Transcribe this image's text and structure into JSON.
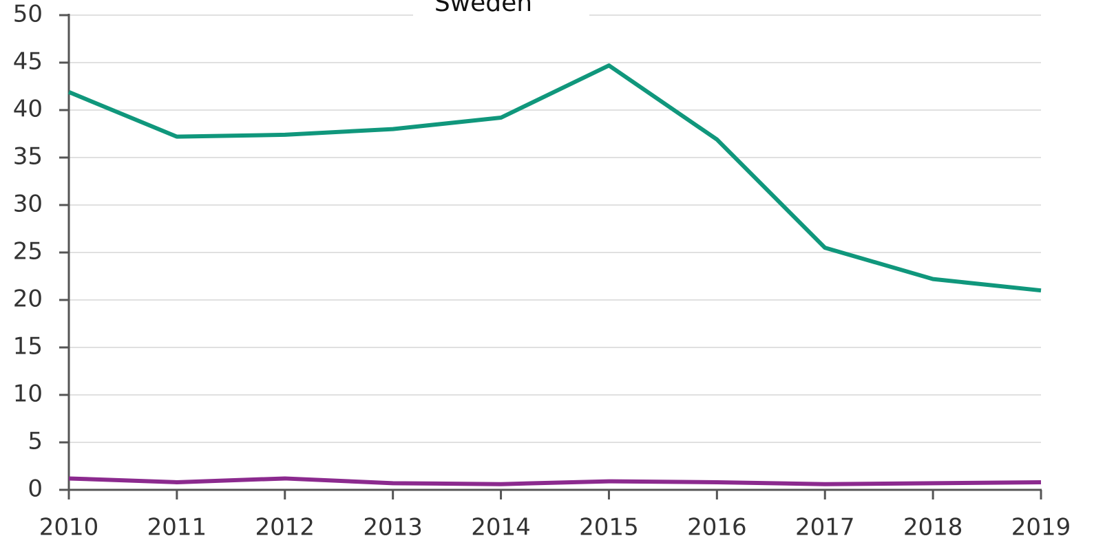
{
  "chart_data": {
    "type": "line",
    "title": "Sweden",
    "x": [
      2010,
      2011,
      2012,
      2013,
      2014,
      2015,
      2016,
      2017,
      2018,
      2019
    ],
    "series": [
      {
        "color": "#10977c",
        "values": [
          41.9,
          37.2,
          37.4,
          38.0,
          39.2,
          44.7,
          36.9,
          25.5,
          22.2,
          21.0
        ]
      },
      {
        "color": "#8b2a8e",
        "values": [
          1.2,
          0.8,
          1.2,
          0.7,
          0.6,
          0.9,
          0.8,
          0.6,
          0.7,
          0.8
        ]
      }
    ],
    "xlim": [
      2010,
      2019
    ],
    "xticks": [
      2010,
      2011,
      2012,
      2013,
      2014,
      2015,
      2016,
      2017,
      2018,
      2019
    ],
    "ylim": [
      0,
      50
    ],
    "yticks": [
      0,
      5,
      10,
      15,
      20,
      25,
      30,
      35,
      40,
      45,
      50
    ],
    "grid": true
  }
}
